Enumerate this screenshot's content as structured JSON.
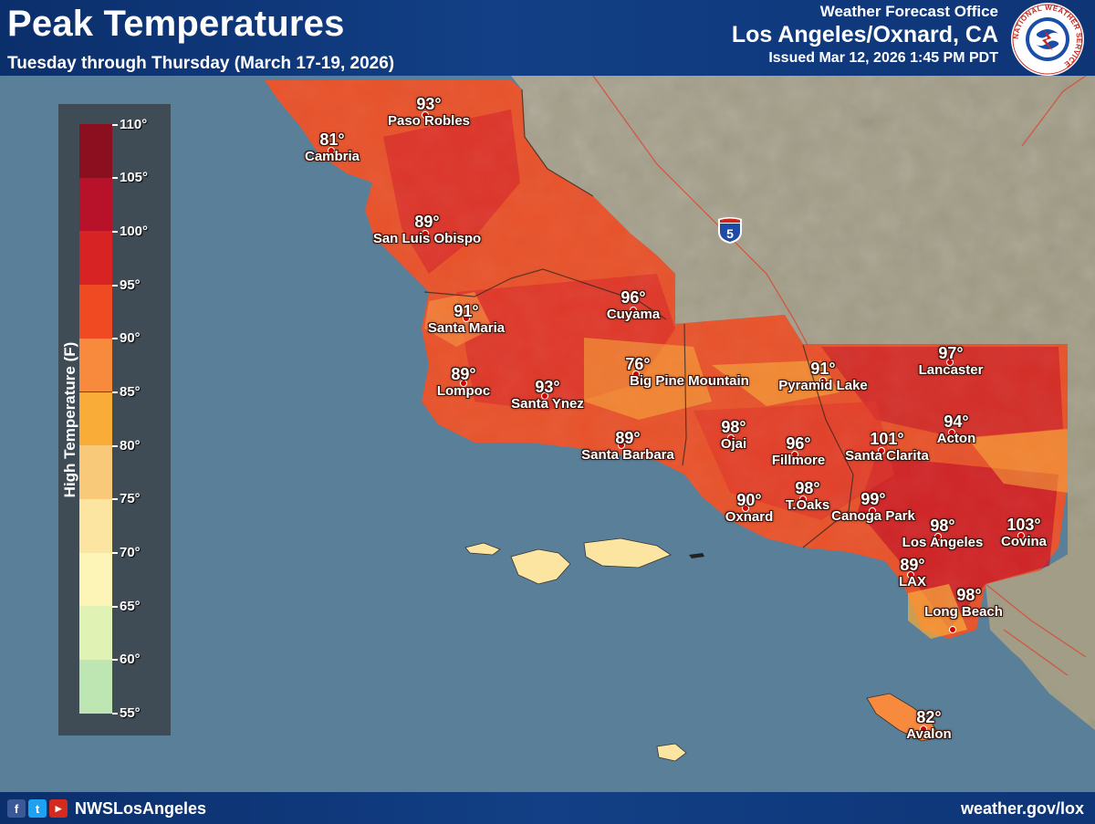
{
  "header": {
    "title": "Peak Temperatures",
    "subtitle": "Tuesday through Thursday (March 17-19, 2026)",
    "office_label": "Weather Forecast Office",
    "office_name": "Los Angeles/Oxnard, CA",
    "issued": "Issued Mar 12, 2026 1:45 PM PDT",
    "logo_text": "NATIONAL WEATHER SERVICE"
  },
  "legend": {
    "title": "High Temperature (F)",
    "ticks": [
      "110°",
      "105°",
      "100°",
      "95°",
      "90°",
      "85°",
      "80°",
      "75°",
      "70°",
      "65°",
      "60°",
      "55°"
    ],
    "colors": [
      "#8b0f1e",
      "#b8122b",
      "#d82324",
      "#f04a22",
      "#f78a3c",
      "#f9ad38",
      "#f8c978",
      "#fce5a0",
      "#fcf5b7",
      "#e1f3b4",
      "#bde6b3",
      "#9ed39a"
    ]
  },
  "highway": {
    "label": "5"
  },
  "cities": [
    {
      "temp": "93°",
      "name": "Paso Robles"
    },
    {
      "temp": "81°",
      "name": "Cambria"
    },
    {
      "temp": "89°",
      "name": "San Luis Obispo"
    },
    {
      "temp": "96°",
      "name": "Cuyama"
    },
    {
      "temp": "91°",
      "name": "Santa Maria"
    },
    {
      "temp": "89°",
      "name": "Lompoc"
    },
    {
      "temp": "93°",
      "name": "Santa Ynez"
    },
    {
      "temp": "76°",
      "name": "Big Pine Mountain"
    },
    {
      "temp": "89°",
      "name": "Santa Barbara"
    },
    {
      "temp": "98°",
      "name": "Ojai"
    },
    {
      "temp": "91°",
      "name": "Pyramid Lake"
    },
    {
      "temp": "97°",
      "name": "Lancaster"
    },
    {
      "temp": "94°",
      "name": "Acton"
    },
    {
      "temp": "96°",
      "name": "Fillmore"
    },
    {
      "temp": "101°",
      "name": "Santa Clarita"
    },
    {
      "temp": "98°",
      "name": "T.Oaks"
    },
    {
      "temp": "90°",
      "name": "Oxnard"
    },
    {
      "temp": "99°",
      "name": "Canoga Park"
    },
    {
      "temp": "98°",
      "name": "Los Angeles"
    },
    {
      "temp": "103°",
      "name": "Covina"
    },
    {
      "temp": "89°",
      "name": "LAX"
    },
    {
      "temp": "98°",
      "name": "Long Beach"
    },
    {
      "temp": "82°",
      "name": "Avalon"
    }
  ],
  "footer": {
    "handle": "NWSLosAngeles",
    "website": "weather.gov/lox"
  }
}
